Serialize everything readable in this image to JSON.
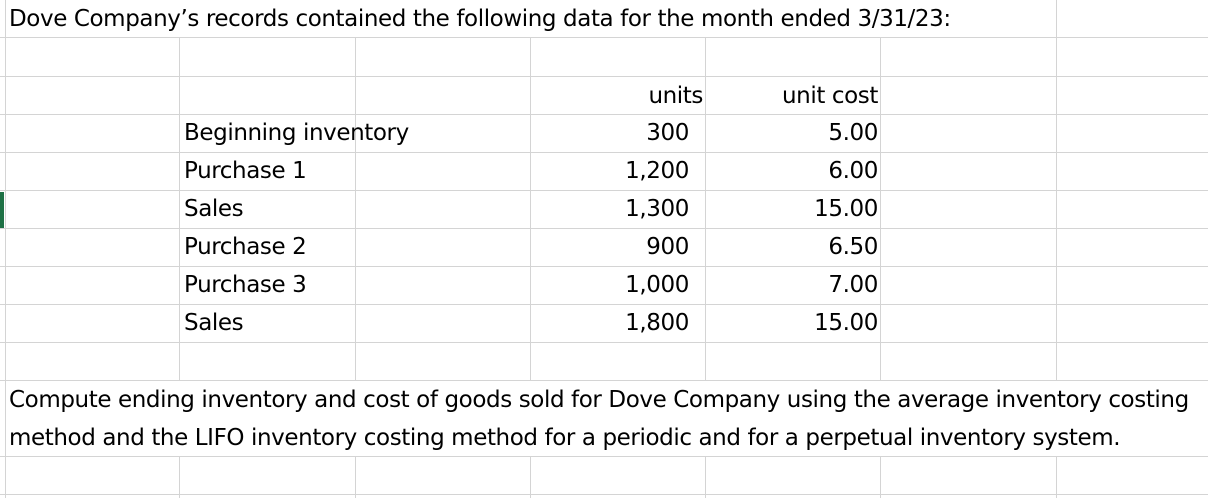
{
  "title": "Dove Company’s records contained the following data for the month ended 3/31/23:",
  "headers": {
    "units": "units",
    "unit_cost": "unit cost"
  },
  "rows": [
    {
      "label": "Beginning inventory",
      "units": "300",
      "unit_cost": "5.00"
    },
    {
      "label": "Purchase 1",
      "units": "1,200",
      "unit_cost": "6.00"
    },
    {
      "label": "Sales",
      "units": "1,300",
      "unit_cost": "15.00"
    },
    {
      "label": "Purchase 2",
      "units": "900",
      "unit_cost": "6.50"
    },
    {
      "label": "Purchase 3",
      "units": "1,000",
      "unit_cost": "7.00"
    },
    {
      "label": "Sales",
      "units": "1,800",
      "unit_cost": "15.00"
    }
  ],
  "instruction_line1": "Compute ending inventory and cost of goods sold for Dove Company using the average inventory costing",
  "instruction_line2": "method and the LIFO inventory costing method for a periodic and for a perpetual inventory system."
}
